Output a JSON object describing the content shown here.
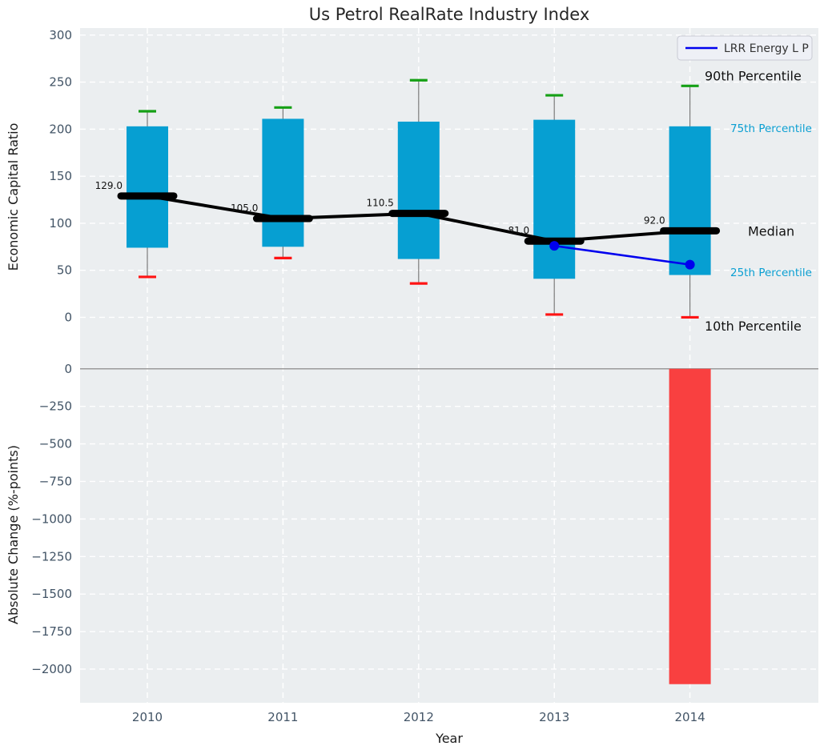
{
  "title": "Us Petrol RealRate Industry Index",
  "legend": {
    "label": "LRR Energy L P"
  },
  "colors": {
    "box_fill": "#069fd2",
    "p90_cap": "#15a015",
    "p10_cap": "#ff1414",
    "median_line": "#000000",
    "company_line": "#0000ee",
    "change_bar": "#f94040",
    "plot_bg": "#ebeef0",
    "grid": "#ffffff",
    "tick_text": "#425466",
    "axis_text": "#1a1a1a",
    "whisker": "#7a7a7a",
    "annotation_cyan": "#0a9fd2",
    "zero_line": "#9a9a9a",
    "legend_bg": "#eef0f6",
    "legend_border": "#c8cad4"
  },
  "chart_data": [
    {
      "type": "box",
      "title": "Us Petrol RealRate Industry Index",
      "xlabel": "Year",
      "ylabel": "Economic Capital Ratio",
      "categories": [
        "2010",
        "2011",
        "2012",
        "2013",
        "2014"
      ],
      "series": [
        {
          "name": "90th Percentile",
          "values": [
            219,
            223,
            252,
            236,
            246
          ]
        },
        {
          "name": "75th Percentile",
          "values": [
            203,
            211,
            208,
            210,
            203
          ]
        },
        {
          "name": "Median",
          "values": [
            129,
            105,
            110.5,
            81,
            92
          ]
        },
        {
          "name": "25th Percentile",
          "values": [
            74,
            75,
            62,
            41,
            45
          ]
        },
        {
          "name": "10th Percentile",
          "values": [
            43,
            63,
            36,
            3,
            0
          ]
        }
      ],
      "median_labels": [
        "129.0",
        "105.0",
        "110.5",
        "81.0",
        "92.0"
      ],
      "company_series": {
        "name": "LRR Energy L P",
        "x": [
          "2013",
          "2014"
        ],
        "y": [
          76,
          56
        ]
      },
      "yticks": [
        0,
        50,
        100,
        150,
        200,
        250,
        300
      ],
      "ylim": [
        -51.5,
        307.5
      ],
      "grid": true,
      "legend_position": "upper right",
      "annotations": [
        {
          "text": "90th Percentile",
          "at_value": 256,
          "style": "black"
        },
        {
          "text": "75th Percentile",
          "at_value": 201,
          "style": "cyan"
        },
        {
          "text": "Median",
          "at_value": 91,
          "style": "black"
        },
        {
          "text": "25th Percentile",
          "at_value": 48,
          "style": "cyan"
        },
        {
          "text": "10th Percentile",
          "at_value": -10,
          "style": "black"
        }
      ]
    },
    {
      "type": "bar",
      "ylabel": "Absolute Change (%-points)",
      "categories": [
        "2010",
        "2011",
        "2012",
        "2013",
        "2014"
      ],
      "values": [
        null,
        null,
        null,
        null,
        -2100
      ],
      "yticks": [
        0,
        -250,
        -500,
        -750,
        -1000,
        -1250,
        -1500,
        -1750,
        -2000
      ],
      "ylim": [
        -2224,
        20
      ],
      "grid": true
    }
  ]
}
